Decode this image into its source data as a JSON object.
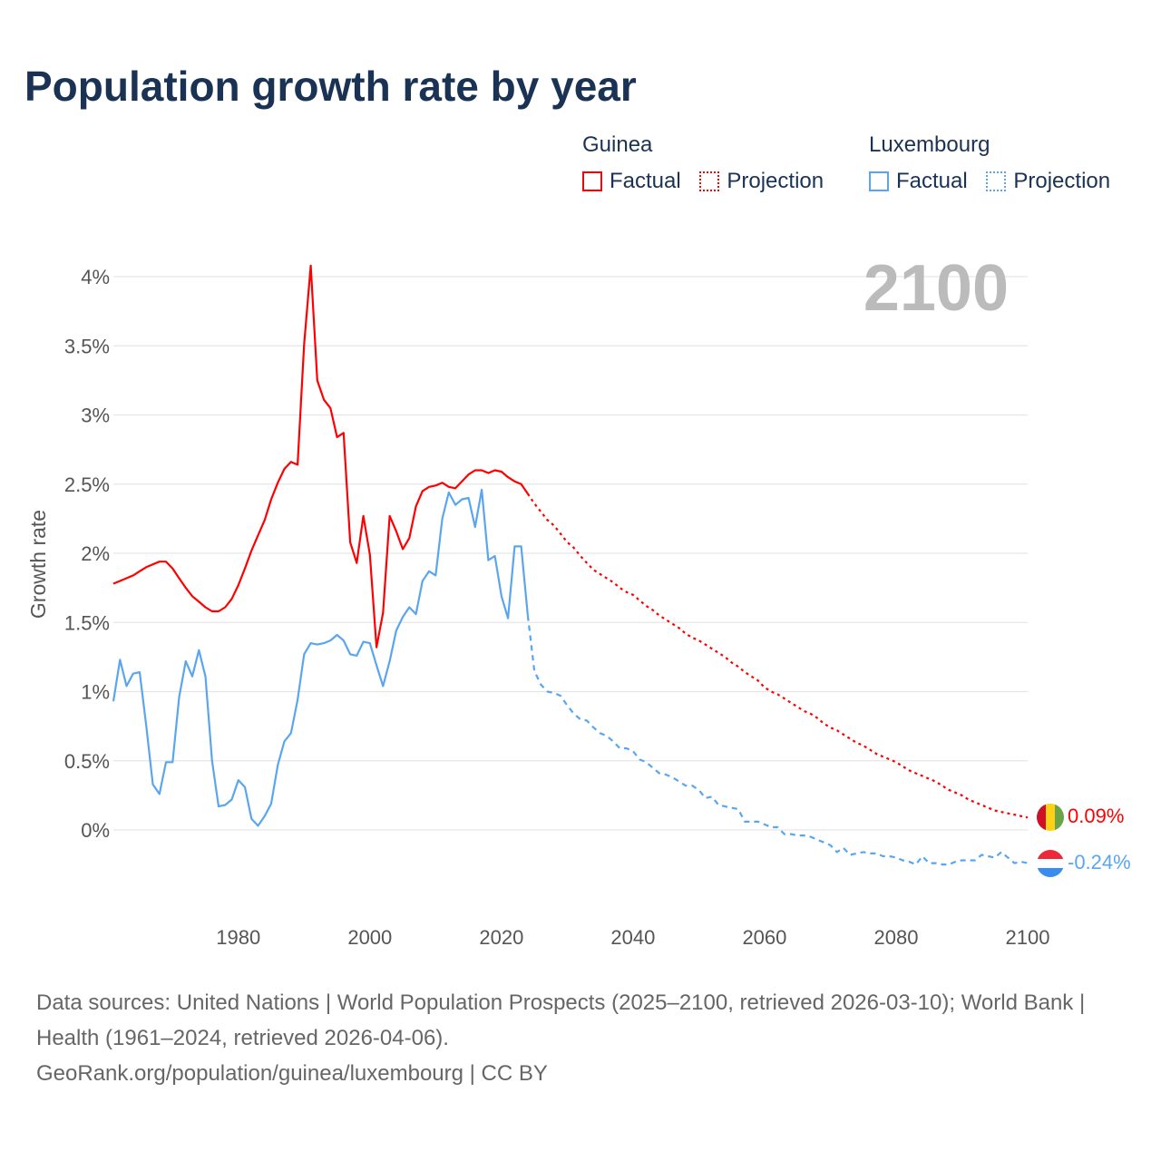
{
  "title": "Population growth rate by year",
  "legend": {
    "groups": [
      {
        "country": "Guinea",
        "factual_label": "Factual",
        "projection_label": "Projection",
        "color": "#ff0000"
      },
      {
        "country": "Luxembourg",
        "factual_label": "Factual",
        "projection_label": "Projection",
        "color": "#5aa6ee"
      }
    ]
  },
  "year_label": "2100",
  "end_labels": {
    "guinea": "0.09%",
    "luxembourg": "-0.24%"
  },
  "footer": {
    "sources": "Data sources: United Nations | World Population Prospects (2025–2100, retrieved 2026-03-10); World Bank | Health (1961–2024, retrieved 2026-04-06).",
    "credit": "GeoRank.org/population/guinea/luxembourg | CC BY"
  },
  "chart_data": {
    "type": "line",
    "title": "Population growth rate by year",
    "xlabel": "",
    "ylabel": "Growth rate",
    "xlim": [
      1961,
      2100
    ],
    "ylim": [
      -0.45,
      4.2
    ],
    "x_ticks": [
      1980,
      2000,
      2020,
      2040,
      2060,
      2080,
      2100
    ],
    "x_tick_labels": [
      "1980",
      "2000",
      "2020",
      "2040",
      "2060",
      "2080",
      "2100"
    ],
    "y_ticks": [
      0,
      0.5,
      1,
      1.5,
      2,
      2.5,
      3,
      3.5,
      4
    ],
    "y_tick_labels": [
      "0%",
      "0.5%",
      "1%",
      "1.5%",
      "2%",
      "2.5%",
      "3%",
      "3.5%",
      "4%"
    ],
    "grid": true,
    "legend_position": "top-right",
    "series": [
      {
        "name": "Guinea Factual",
        "color": "#ff0000",
        "style": "solid",
        "start_year": 1961,
        "values": [
          1.78,
          1.8,
          1.82,
          1.84,
          1.87,
          1.9,
          1.92,
          1.94,
          1.94,
          1.89,
          1.82,
          1.75,
          1.69,
          1.65,
          1.61,
          1.58,
          1.58,
          1.61,
          1.67,
          1.77,
          1.89,
          2.02,
          2.13,
          2.24,
          2.39,
          2.51,
          2.61,
          2.66,
          2.64,
          3.51,
          4.08,
          3.25,
          3.11,
          3.05,
          2.84,
          2.87,
          2.08,
          1.93,
          2.27,
          1.99,
          1.32,
          1.57,
          2.27,
          2.16,
          2.03,
          2.11,
          2.34,
          2.45,
          2.48,
          2.49,
          2.51,
          2.48,
          2.47,
          2.52,
          2.57,
          2.6,
          2.6,
          2.58,
          2.6,
          2.59,
          2.55,
          2.52,
          2.5,
          2.43
        ]
      },
      {
        "name": "Guinea Projection",
        "color": "#ff0000",
        "style": "dotted",
        "start_year": 2024,
        "values": [
          2.43,
          2.36,
          2.3,
          2.24,
          2.2,
          2.14,
          2.08,
          2.04,
          1.98,
          1.93,
          1.88,
          1.85,
          1.82,
          1.79,
          1.75,
          1.72,
          1.7,
          1.66,
          1.62,
          1.59,
          1.55,
          1.52,
          1.49,
          1.46,
          1.42,
          1.39,
          1.37,
          1.34,
          1.31,
          1.28,
          1.25,
          1.21,
          1.18,
          1.14,
          1.11,
          1.08,
          1.03,
          1.0,
          0.98,
          0.95,
          0.92,
          0.89,
          0.86,
          0.84,
          0.81,
          0.77,
          0.74,
          0.72,
          0.69,
          0.66,
          0.63,
          0.61,
          0.58,
          0.55,
          0.53,
          0.51,
          0.49,
          0.46,
          0.43,
          0.41,
          0.39,
          0.37,
          0.35,
          0.32,
          0.29,
          0.27,
          0.25,
          0.22,
          0.2,
          0.18,
          0.16,
          0.14,
          0.13,
          0.12,
          0.11,
          0.1,
          0.09
        ]
      },
      {
        "name": "Luxembourg Factual",
        "color": "#5aa6ee",
        "style": "solid",
        "start_year": 1961,
        "values": [
          0.93,
          1.23,
          1.04,
          1.13,
          1.14,
          0.75,
          0.33,
          0.26,
          0.49,
          0.49,
          0.96,
          1.22,
          1.11,
          1.3,
          1.11,
          0.5,
          0.17,
          0.18,
          0.22,
          0.36,
          0.31,
          0.08,
          0.03,
          0.1,
          0.19,
          0.47,
          0.64,
          0.7,
          0.94,
          1.27,
          1.35,
          1.34,
          1.35,
          1.37,
          1.41,
          1.37,
          1.27,
          1.26,
          1.36,
          1.35,
          1.19,
          1.04,
          1.22,
          1.44,
          1.54,
          1.61,
          1.56,
          1.8,
          1.87,
          1.84,
          2.25,
          2.44,
          2.35,
          2.39,
          2.4,
          2.19,
          2.46,
          1.95,
          1.98,
          1.69,
          1.53,
          2.05,
          2.05,
          1.55
        ]
      },
      {
        "name": "Luxembourg Projection",
        "color": "#5aa6ee",
        "style": "dashed",
        "start_year": 2024,
        "values": [
          1.55,
          1.15,
          1.05,
          1.0,
          0.99,
          0.97,
          0.9,
          0.84,
          0.8,
          0.79,
          0.74,
          0.7,
          0.68,
          0.64,
          0.59,
          0.59,
          0.57,
          0.51,
          0.49,
          0.45,
          0.41,
          0.4,
          0.38,
          0.35,
          0.32,
          0.32,
          0.29,
          0.23,
          0.24,
          0.18,
          0.17,
          0.16,
          0.15,
          0.06,
          0.06,
          0.06,
          0.04,
          0.02,
          0.02,
          -0.03,
          -0.03,
          -0.04,
          -0.04,
          -0.05,
          -0.07,
          -0.09,
          -0.11,
          -0.16,
          -0.13,
          -0.18,
          -0.17,
          -0.16,
          -0.17,
          -0.17,
          -0.19,
          -0.19,
          -0.2,
          -0.22,
          -0.23,
          -0.25,
          -0.19,
          -0.24,
          -0.24,
          -0.25,
          -0.25,
          -0.23,
          -0.22,
          -0.22,
          -0.22,
          -0.18,
          -0.19,
          -0.2,
          -0.16,
          -0.2,
          -0.24,
          -0.23,
          -0.24
        ]
      }
    ]
  }
}
